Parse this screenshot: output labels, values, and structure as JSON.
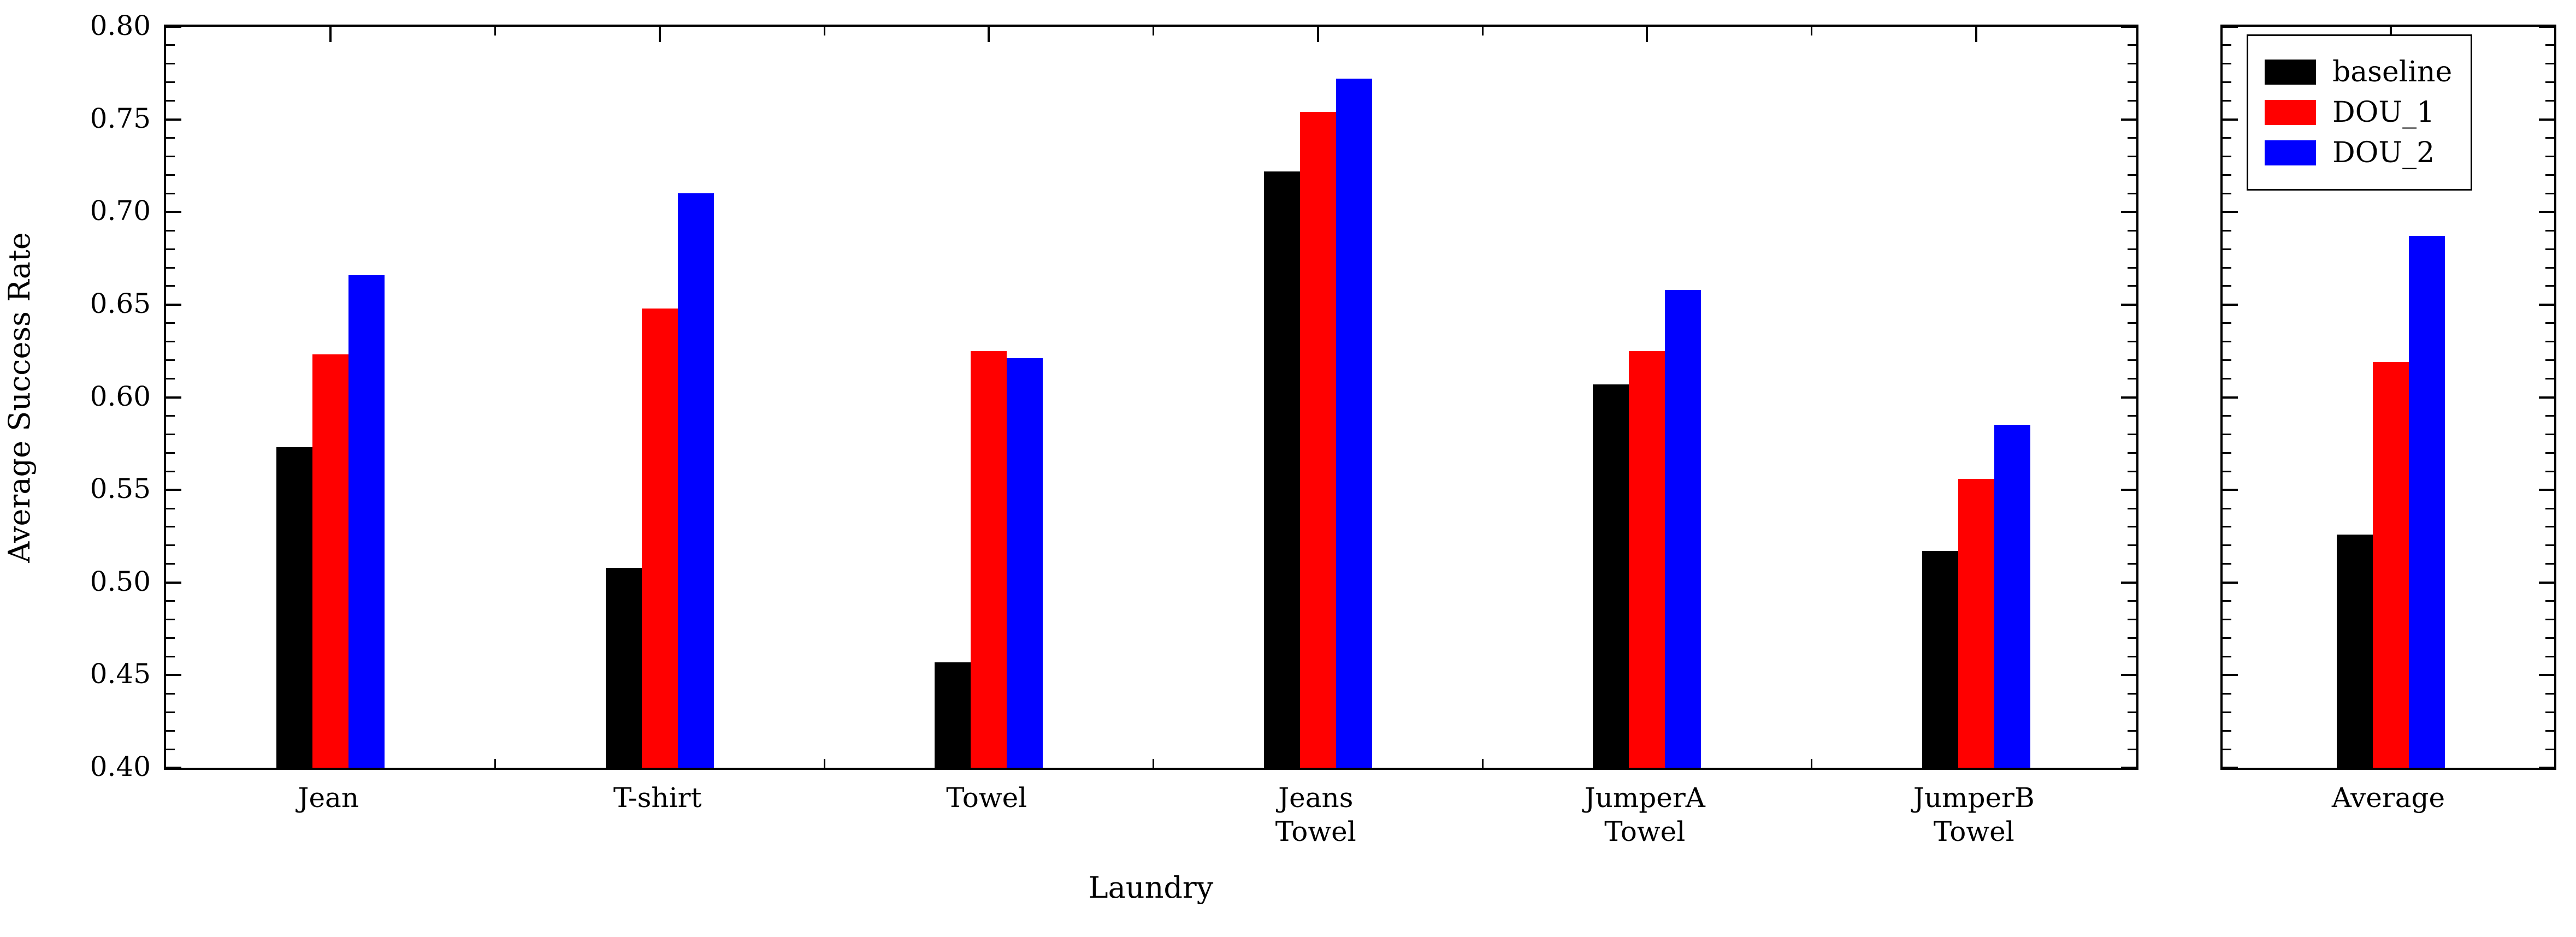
{
  "figure": {
    "xlabel": "Laundry",
    "ylabel": "Average Success Rate",
    "ylim": [
      0.4,
      0.8
    ],
    "ytick_step": 0.05,
    "ytick_minor_step": 0.01,
    "yticks": [
      "0.40",
      "0.45",
      "0.50",
      "0.55",
      "0.60",
      "0.65",
      "0.70",
      "0.75",
      "0.80"
    ],
    "background": "#ffffff",
    "axis_color": "#000000"
  },
  "legend": {
    "position": "top of average panel",
    "entries": [
      {
        "label": "baseline",
        "color": "#000000"
      },
      {
        "label": "DOU_1",
        "color": "#ff0000"
      },
      {
        "label": "DOU_2",
        "color": "#0000ff"
      }
    ]
  },
  "chart_data": [
    {
      "type": "bar",
      "title": "",
      "xlabel": "Laundry",
      "ylabel": "Average Success Rate",
      "ylim": [
        0.4,
        0.8
      ],
      "grid": false,
      "categories": [
        "Jean",
        "T-shirt",
        "Towel",
        "Jeans\nTowel",
        "JumperA\nTowel",
        "JumperB\nTowel"
      ],
      "series": [
        {
          "name": "baseline",
          "color": "#000000",
          "values": [
            0.573,
            0.508,
            0.457,
            0.722,
            0.607,
            0.517
          ]
        },
        {
          "name": "DOU_1",
          "color": "#ff0000",
          "values": [
            0.623,
            0.648,
            0.625,
            0.754,
            0.625,
            0.556
          ]
        },
        {
          "name": "DOU_2",
          "color": "#0000ff",
          "values": [
            0.666,
            0.71,
            0.621,
            0.772,
            0.658,
            0.585
          ]
        }
      ]
    },
    {
      "type": "bar",
      "title": "",
      "xlabel": "",
      "ylabel": "",
      "ylim": [
        0.4,
        0.8
      ],
      "grid": false,
      "categories": [
        "Average"
      ],
      "series": [
        {
          "name": "baseline",
          "color": "#000000",
          "values": [
            0.526
          ]
        },
        {
          "name": "DOU_1",
          "color": "#ff0000",
          "values": [
            0.619
          ]
        },
        {
          "name": "DOU_2",
          "color": "#0000ff",
          "values": [
            0.687
          ]
        }
      ]
    }
  ]
}
